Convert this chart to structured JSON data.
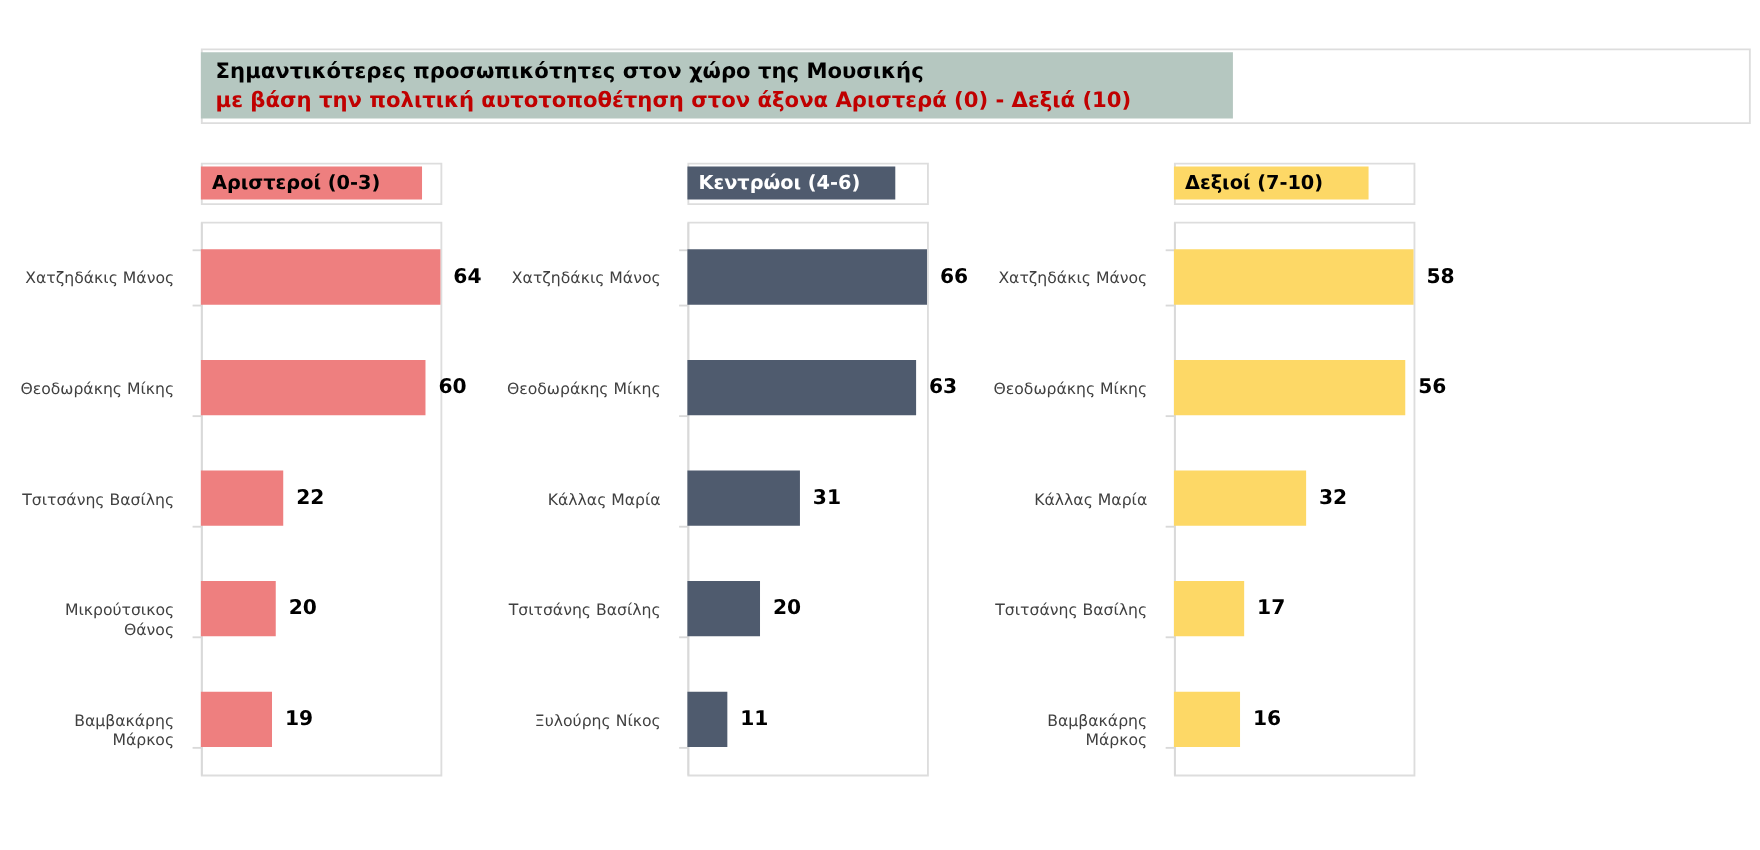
{
  "chart_data": [
    {
      "type": "other",
      "title": "Σημαντικότερες προσωπικότητες  στον χώρο της Μουσικής",
      "subtitle": "με βάση την πολιτική αυτοτοποθέτηση στον άξονα Αριστερά (0) - Δεξιά (10)"
    },
    {
      "type": "bar",
      "orientation": "horizontal",
      "title": "Αριστεροί (0-3)",
      "categories": [
        "Χατζηδάκις Μάνος",
        "Θεοδωράκης Μίκης",
        "Τσιτσάνης Βασίλης",
        "Μικρούτσικος\nΘάνος",
        "Βαμβακάρης\nΜάρκος"
      ],
      "values": [
        64,
        60,
        22,
        20,
        19
      ],
      "color": "#ee7f7f",
      "data_labels": true,
      "tick_labels": "y"
    },
    {
      "type": "bar",
      "orientation": "horizontal",
      "title": "Κεντρώοι (4-6)",
      "categories": [
        "Χατζηδάκις Μάνος",
        "Θεοδωράκης Μίκης",
        "Κάλλας Μαρία",
        "Τσιτσάνης Βασίλης",
        "Ξυλούρης Νίκος"
      ],
      "values": [
        66,
        63,
        31,
        20,
        11
      ],
      "color": "#4f5b6e",
      "data_labels": true,
      "tick_labels": "y"
    },
    {
      "type": "bar",
      "orientation": "horizontal",
      "title": "Δεξιοί (7-10)",
      "categories": [
        "Χατζηδάκις Μάνος",
        "Θεοδωράκης Μίκης",
        "Κάλλας Μαρία",
        "Τσιτσάνης Βασίλης",
        "Βαμβακάρης\nΜάρκος"
      ],
      "values": [
        58,
        56,
        32,
        17,
        16
      ],
      "color": "#fdd866",
      "data_labels": true,
      "tick_labels": "y"
    }
  ]
}
